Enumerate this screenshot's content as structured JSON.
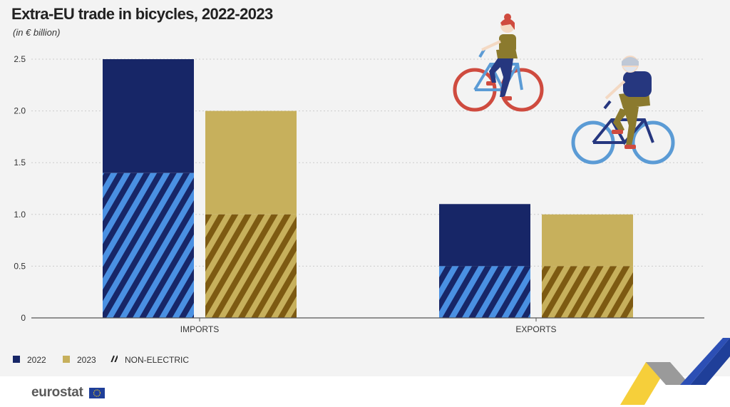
{
  "title": "Extra-EU trade in bicycles, 2022-2023",
  "subtitle": "(in € billion)",
  "legend": {
    "y2022": "2022",
    "y2023": "2023",
    "non_electric": "NON-ELECTRIC"
  },
  "logo_text": "eurostat",
  "colors": {
    "y2022": "#172667",
    "y2022_stripe": "#4a90e2",
    "y2023": "#c7b05c",
    "y2023_stripe": "#7d5a12",
    "grid": "#cccccc",
    "axis": "#555555",
    "panel": "#f3f3f3"
  },
  "chart_data": {
    "type": "bar",
    "stacked": true,
    "categories": [
      "IMPORTS",
      "EXPORTS"
    ],
    "series": [
      {
        "name": "2022",
        "total": [
          2.5,
          1.1
        ],
        "non_electric": [
          1.4,
          0.5
        ]
      },
      {
        "name": "2023",
        "total": [
          2.0,
          1.0
        ],
        "non_electric": [
          1.0,
          0.5
        ]
      }
    ],
    "ylim": [
      0,
      2.5
    ],
    "yticks": [
      0,
      0.5,
      1.0,
      1.5,
      2.0,
      2.5
    ],
    "ytick_labels": [
      "0",
      "0.5",
      "1.0",
      "1.5",
      "2.0",
      "2.5"
    ],
    "grid": true,
    "legend_position": "bottom-left",
    "illustrations": [
      "woman-cyclist-icon",
      "man-cyclist-icon"
    ]
  }
}
